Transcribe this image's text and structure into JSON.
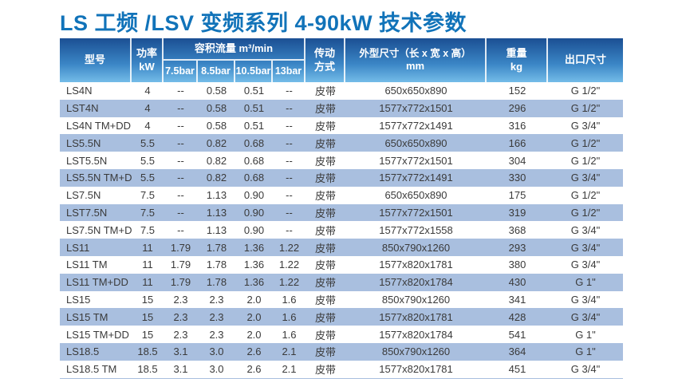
{
  "title": "LS 工频 /LSV 变频系列 4-90kW 技术参数",
  "colors": {
    "title_blue": "#1173b9",
    "header_gradient_top": "#1b4f93",
    "header_gradient_bottom": "#74bce8",
    "row_stripe_blue": "#a9bfdf",
    "body_text": "#3a3a3a",
    "header_text": "#ffffff"
  },
  "table": {
    "header": {
      "model": "型号",
      "power_line1": "功率",
      "power_line2": "kW",
      "flow_group": "容积流量 m³/min",
      "flow_col1": "7.5bar",
      "flow_col2": "8.5bar",
      "flow_col3": "10.5bar",
      "flow_col4": "13bar",
      "drive_line1": "传动",
      "drive_line2": "方式",
      "dims_line1": "外型尺寸（长 x 宽 x 高）",
      "dims_line2": "mm",
      "weight_line1": "重量",
      "weight_line2": "kg",
      "outlet": "出口尺寸"
    },
    "rows": [
      [
        "LS4N",
        "4",
        "--",
        "0.58",
        "0.51",
        "--",
        "皮带",
        "650x650x890",
        "152",
        "G 1/2\""
      ],
      [
        "LST4N",
        "4",
        "--",
        "0.58",
        "0.51",
        "--",
        "皮带",
        "1577x772x1501",
        "296",
        "G 1/2\""
      ],
      [
        "LS4N TM+DD",
        "4",
        "--",
        "0.58",
        "0.51",
        "--",
        "皮带",
        "1577x772x1491",
        "316",
        "G 3/4\""
      ],
      [
        "LS5.5N",
        "5.5",
        "--",
        "0.82",
        "0.68",
        "--",
        "皮带",
        "650x650x890",
        "166",
        "G 1/2\""
      ],
      [
        "LST5.5N",
        "5.5",
        "--",
        "0.82",
        "0.68",
        "--",
        "皮带",
        "1577x772x1501",
        "304",
        "G 1/2\""
      ],
      [
        "LS5.5N TM+DD",
        "5.5",
        "--",
        "0.82",
        "0.68",
        "--",
        "皮带",
        "1577x772x1491",
        "330",
        "G 3/4\""
      ],
      [
        "LS7.5N",
        "7.5",
        "--",
        "1.13",
        "0.90",
        "--",
        "皮带",
        "650x650x890",
        "175",
        "G 1/2\""
      ],
      [
        "LST7.5N",
        "7.5",
        "--",
        "1.13",
        "0.90",
        "--",
        "皮带",
        "1577x772x1501",
        "319",
        "G 1/2\""
      ],
      [
        "LS7.5N TM+DD",
        "7.5",
        "--",
        "1.13",
        "0.90",
        "--",
        "皮带",
        "1577x772x1558",
        "368",
        "G 3/4\""
      ],
      [
        "LS11",
        "11",
        "1.79",
        "1.78",
        "1.36",
        "1.22",
        "皮带",
        "850x790x1260",
        "293",
        "G 3/4\""
      ],
      [
        "LS11 TM",
        "11",
        "1.79",
        "1.78",
        "1.36",
        "1.22",
        "皮带",
        "1577x820x1781",
        "380",
        "G 3/4\""
      ],
      [
        "LS11 TM+DD",
        "11",
        "1.79",
        "1.78",
        "1.36",
        "1.22",
        "皮带",
        "1577x820x1784",
        "430",
        "G 1\""
      ],
      [
        "LS15",
        "15",
        "2.3",
        "2.3",
        "2.0",
        "1.6",
        "皮带",
        "850x790x1260",
        "341",
        "G 3/4\""
      ],
      [
        "LS15 TM",
        "15",
        "2.3",
        "2.3",
        "2.0",
        "1.6",
        "皮带",
        "1577x820x1781",
        "428",
        "G 3/4\""
      ],
      [
        "LS15 TM+DD",
        "15",
        "2.3",
        "2.3",
        "2.0",
        "1.6",
        "皮带",
        "1577x820x1784",
        "541",
        "G 1\""
      ],
      [
        "LS18.5",
        "18.5",
        "3.1",
        "3.0",
        "2.6",
        "2.1",
        "皮带",
        "850x790x1260",
        "364",
        "G 1\""
      ],
      [
        "LS18.5 TM",
        "18.5",
        "3.1",
        "3.0",
        "2.6",
        "2.1",
        "皮带",
        "1577x820x1781",
        "451",
        "G 3/4\""
      ]
    ]
  }
}
